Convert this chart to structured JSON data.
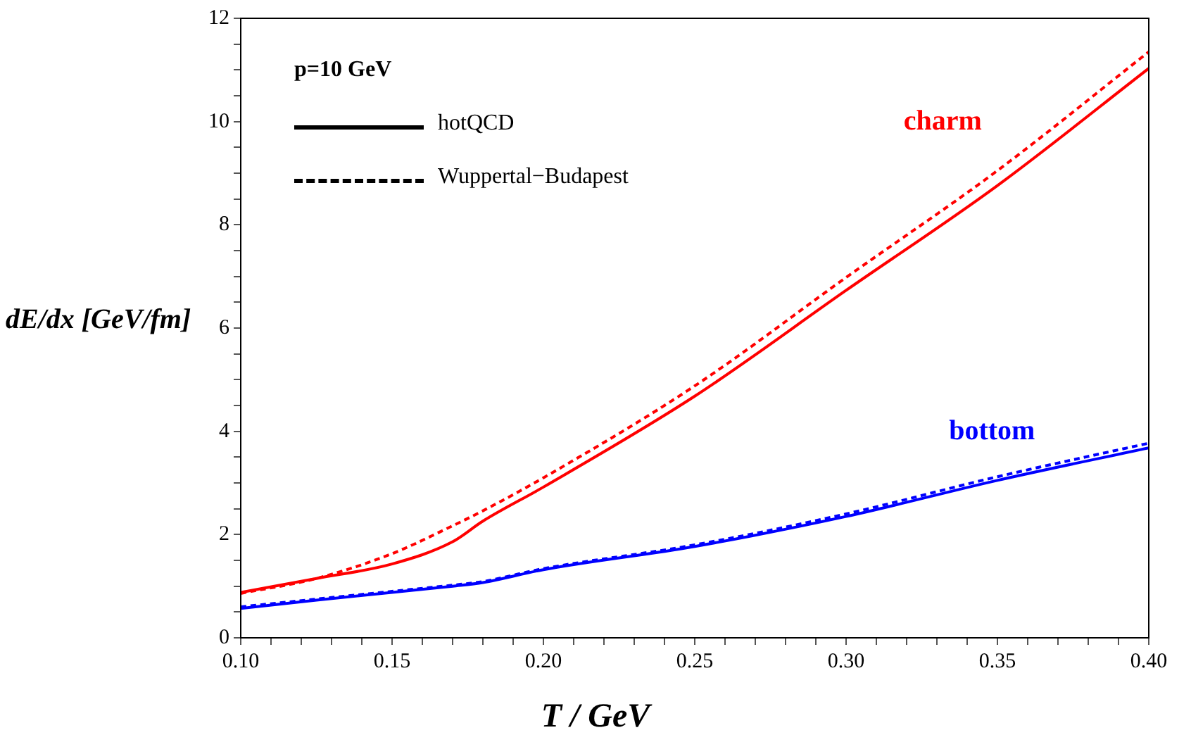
{
  "chart_data": {
    "type": "line",
    "xlabel": "T / GeV",
    "ylabel": "dE/dx [GeV/fm]",
    "x": [
      0.1,
      0.125,
      0.15,
      0.17,
      0.18,
      0.2,
      0.25,
      0.3,
      0.35,
      0.4
    ],
    "series": [
      {
        "color": "#ff0000",
        "line_style": "solid",
        "values": [
          0.88,
          1.15,
          1.43,
          1.86,
          2.26,
          2.92,
          4.68,
          6.73,
          8.76,
          11.03
        ]
      },
      {
        "color": "#ff0000",
        "line_style": "dashed",
        "values": [
          0.86,
          1.15,
          1.63,
          2.17,
          2.46,
          3.1,
          4.88,
          6.98,
          9.05,
          11.35
        ]
      },
      {
        "color": "#0000ff",
        "line_style": "solid",
        "values": [
          0.57,
          0.73,
          0.88,
          1.0,
          1.07,
          1.32,
          1.77,
          2.35,
          3.05,
          3.68
        ]
      },
      {
        "color": "#0000ff",
        "line_style": "dashed",
        "values": [
          0.6,
          0.75,
          0.9,
          1.02,
          1.09,
          1.34,
          1.8,
          2.4,
          3.12,
          3.77
        ]
      }
    ],
    "xlim": [
      0.1,
      0.4
    ],
    "xticks": [
      {
        "value": 0.1,
        "label": "0.10"
      },
      {
        "value": 0.11,
        "label": null
      },
      {
        "value": 0.12,
        "label": null
      },
      {
        "value": 0.13,
        "label": null
      },
      {
        "value": 0.14,
        "label": null
      },
      0.15,
      {
        "value": 0.16,
        "label": null
      },
      {
        "value": 0.17,
        "label": null
      },
      {
        "value": 0.18,
        "label": null
      },
      {
        "value": 0.19,
        "label": null
      },
      {
        "value": 0.2,
        "label": "0.20"
      },
      {
        "value": 0.21,
        "label": null
      },
      {
        "value": 0.22,
        "label": null
      },
      {
        "value": 0.23,
        "label": null
      },
      {
        "value": 0.24,
        "label": null
      },
      0.25,
      {
        "value": 0.26,
        "label": null
      },
      {
        "value": 0.27,
        "label": null
      },
      {
        "value": 0.28,
        "label": null
      },
      {
        "value": 0.29,
        "label": null
      },
      {
        "value": 0.3,
        "label": "0.30"
      },
      {
        "value": 0.31,
        "label": null
      },
      {
        "value": 0.32,
        "label": null
      },
      {
        "value": 0.33,
        "label": null
      },
      {
        "value": 0.34,
        "label": null
      },
      0.35,
      {
        "value": 0.36,
        "label": null
      },
      {
        "value": 0.37,
        "label": null
      },
      {
        "value": 0.38,
        "label": null
      },
      {
        "value": 0.39,
        "label": null
      },
      {
        "value": 0.4,
        "label": "0.40"
      }
    ],
    "ylim": [
      0,
      12
    ],
    "yticks": [
      0,
      {
        "value": 0.5,
        "label": null
      },
      {
        "value": 1,
        "label": null
      },
      {
        "value": 1.5,
        "label": null
      },
      2,
      {
        "value": 2.5,
        "label": null
      },
      {
        "value": 3,
        "label": null
      },
      {
        "value": 3.5,
        "label": null
      },
      4,
      {
        "value": 4.5,
        "label": null
      },
      {
        "value": 5,
        "label": null
      },
      {
        "value": 5.5,
        "label": null
      },
      6,
      {
        "value": 6.5,
        "label": null
      },
      {
        "value": 7,
        "label": null
      },
      {
        "value": 7.5,
        "label": null
      },
      8,
      {
        "value": 8.5,
        "label": null
      },
      {
        "value": 9,
        "label": null
      },
      {
        "value": 9.5,
        "label": null
      },
      10,
      {
        "value": 10.5,
        "label": null
      },
      {
        "value": 11,
        "label": null
      },
      {
        "value": 11.5,
        "label": null
      },
      12
    ],
    "grid": false,
    "marker": "none",
    "annotations": [
      "p=10 GeV",
      "hotQCD",
      "Wuppertal−Budapest",
      "charm",
      "bottom"
    ]
  }
}
